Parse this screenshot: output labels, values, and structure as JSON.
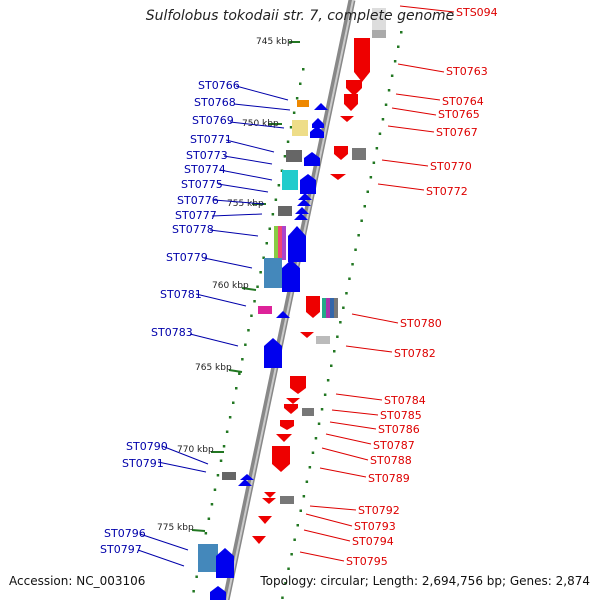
{
  "title": "Sulfolobus tokodaii str. 7, complete genome",
  "accession": "Accession: NC_003106",
  "summary": "Topology: circular; Length: 2,694,756 bp; Genes: 2,874",
  "colors": {
    "forward_label": "#0000aa",
    "reverse_label": "#dd0000",
    "forward_gene": "#0000ee",
    "reverse_gene": "#ee0000",
    "tick": "#227722"
  },
  "kbp_marks": [
    "745 kbp",
    "750 kbp",
    "755 kbp",
    "760 kbp",
    "765 kbp",
    "770 kbp",
    "775 kbp"
  ],
  "left_labels": [
    "ST0766",
    "ST0768",
    "ST0769",
    "ST0771",
    "ST0773",
    "ST0774",
    "ST0775",
    "ST0776",
    "ST0777",
    "ST0778",
    "ST0779",
    "ST0781",
    "ST0783",
    "ST0790",
    "ST0791",
    "ST0796",
    "ST0797"
  ],
  "right_labels": [
    "STS094",
    "ST0763",
    "ST0764",
    "ST0765",
    "ST0767",
    "ST0770",
    "ST0772",
    "ST0780",
    "ST0782",
    "ST0784",
    "ST0785",
    "ST0786",
    "ST0787",
    "ST0788",
    "ST0789",
    "ST0792",
    "ST0793",
    "ST0794",
    "ST0795"
  ]
}
